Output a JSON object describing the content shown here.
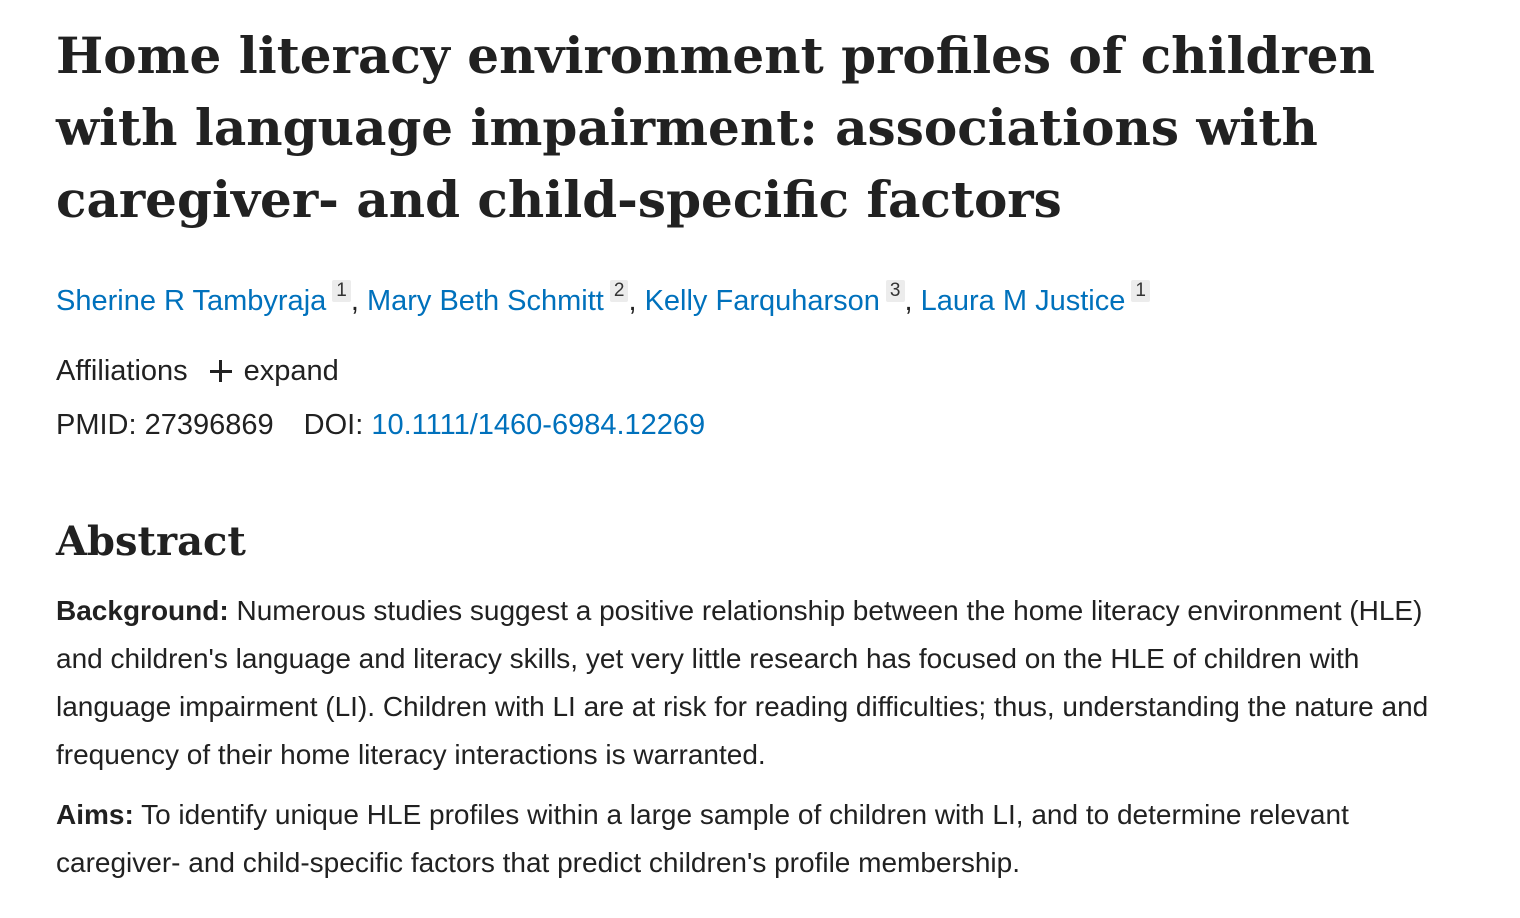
{
  "article": {
    "title": "Home literacy environment profiles of children with language impairment: associations with caregiver- and child-specific factors",
    "authors": [
      {
        "name": "Sherine R Tambyraja",
        "affiliation": "1"
      },
      {
        "name": "Mary Beth Schmitt",
        "affiliation": "2"
      },
      {
        "name": "Kelly Farquharson",
        "affiliation": "3"
      },
      {
        "name": "Laura M Justice",
        "affiliation": "1"
      }
    ],
    "author_separator": ",",
    "affiliations_label": "Affiliations",
    "expand_label": "expand",
    "pmid_label": "PMID:",
    "pmid": "27396869",
    "doi_label": "DOI:",
    "doi": "10.1111/1460-6984.12269"
  },
  "abstract": {
    "heading": "Abstract",
    "sections": [
      {
        "label": "Background:",
        "text": "Numerous studies suggest a positive relationship between the home literacy environment (HLE) and children's language and literacy skills, yet very little research has focused on the HLE of children with language impairment (LI). Children with LI are at risk for reading difficulties; thus, understanding the nature and frequency of their home literacy interactions is warranted."
      },
      {
        "label": "Aims:",
        "text": "To identify unique HLE profiles within a large sample of children with LI, and to determine relevant caregiver- and child-specific factors that predict children's profile membership."
      }
    ]
  },
  "colors": {
    "text": "#212121",
    "link": "#0071bc",
    "badge_bg": "#ececec"
  },
  "icons": {
    "expand": "plus-icon"
  }
}
